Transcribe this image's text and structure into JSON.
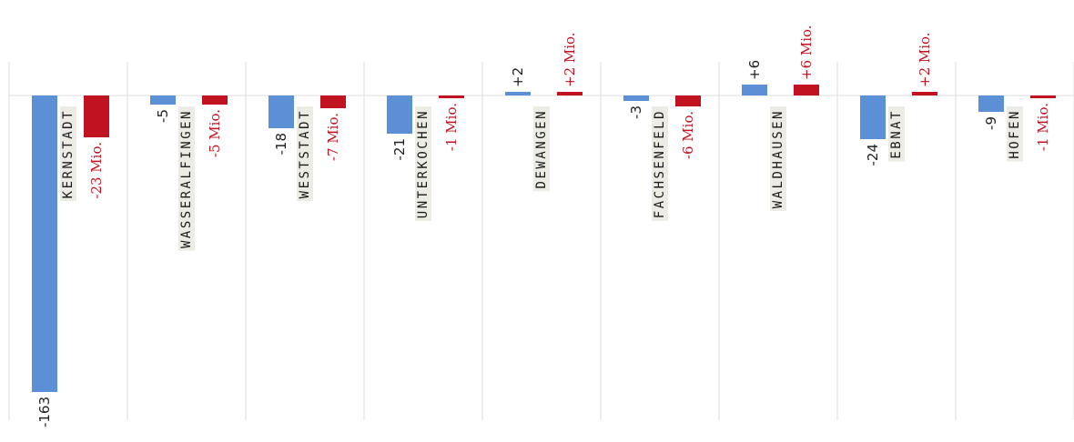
{
  "chart_data": {
    "type": "bar",
    "categories": [
      "KERNSTADT",
      "WASSERALFINGEN",
      "WESTSTADT",
      "UNTERKOCHEN",
      "DEWANGEN",
      "FACHSENFELD",
      "WALDHAUSEN",
      "EBNAT",
      "HOFEN"
    ],
    "series": [
      {
        "values": [
          -163,
          -5,
          -18,
          -21,
          2,
          -3,
          6,
          -24,
          -9
        ],
        "labels": [
          "-163",
          "-5",
          "-18",
          "-21",
          "+2",
          "-3",
          "+6",
          "-24",
          "-9"
        ],
        "color": "#5b8fd6"
      },
      {
        "values": [
          -23,
          -5,
          -7,
          -1,
          2,
          -6,
          6,
          2,
          -1
        ],
        "labels": [
          "-23 Mio.",
          "-5 Mio.",
          "-7 Mio.",
          "-1 Mio.",
          "+2 Mio.",
          "-6 Mio.",
          "+6 Mio.",
          "+2 Mio.",
          "-1 Mio."
        ],
        "color": "#c1121f"
      }
    ],
    "grid": true,
    "baseline": 0,
    "colors": {
      "blue": "#5b8fd6",
      "red": "#c1121f",
      "label_bg": "#ecebe4",
      "grid": "#dddddd"
    }
  }
}
